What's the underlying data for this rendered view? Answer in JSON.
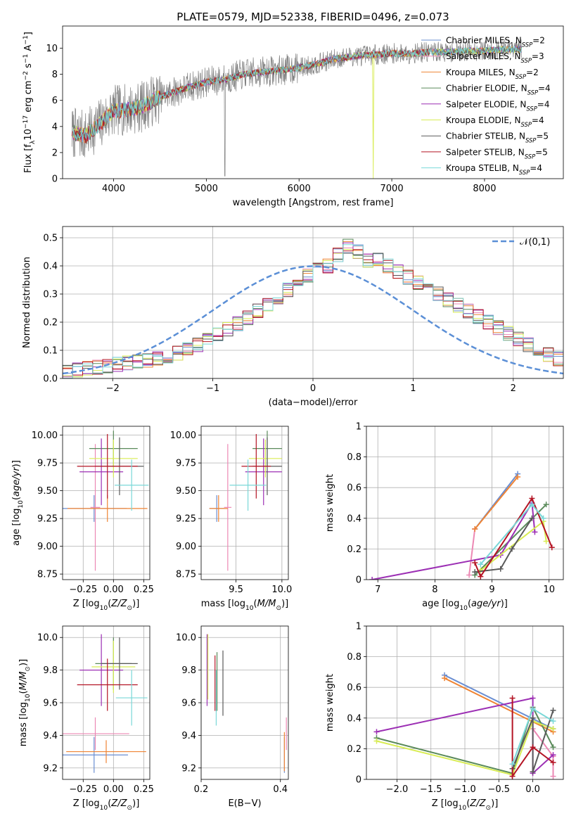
{
  "chart_data": [
    {
      "id": "spectrum",
      "type": "line",
      "title": "PLATE=0579, MJD=52338, FIBERID=0496, z=0.073",
      "xlabel": "wavelength [Angstrom, rest frame]",
      "ylabel": "Flux [f$_\\lambda$10$^{-17}$ erg cm$^{-2}$ s$^{-1}$ A$^{-1}$]",
      "xlim": [
        3450,
        8850
      ],
      "ylim": [
        0,
        11.7
      ],
      "xticks": [
        4000,
        5000,
        6000,
        7000,
        8000
      ],
      "yticks": [
        0,
        2,
        4,
        6,
        8,
        10
      ],
      "data_curve": {
        "x": [
          3550,
          3700,
          3850,
          4000,
          4150,
          4300,
          4450,
          4600,
          4800,
          5000,
          5200,
          5400,
          5600,
          5800,
          6000,
          6200,
          6400,
          6600,
          6800,
          7000,
          7200,
          7400,
          7600,
          7800,
          8000,
          8200,
          8400
        ],
        "y": [
          3.5,
          3.3,
          4.2,
          5.2,
          5.3,
          5.5,
          6.1,
          6.5,
          7.0,
          7.4,
          7.6,
          8.0,
          8.2,
          8.3,
          8.5,
          8.8,
          9.2,
          9.4,
          9.5,
          9.6,
          9.6,
          9.7,
          9.7,
          9.8,
          9.8,
          9.9,
          9.9
        ]
      },
      "legend_loc": "upper right",
      "series": [
        {
          "name": "Chabrier MILES, N$_{SSP}$=2",
          "color": "#6a8ed2"
        },
        {
          "name": "Salpeter MILES, N$_{SSP}$=3",
          "color": "#ec88b4"
        },
        {
          "name": "Kroupa MILES, N$_{SSP}$=2",
          "color": "#ef8434"
        },
        {
          "name": "Chabrier ELODIE, N$_{SSP}$=4",
          "color": "#5a8a5a"
        },
        {
          "name": "Salpeter ELODIE, N$_{SSP}$=4",
          "color": "#9c2fb4"
        },
        {
          "name": "Kroupa ELODIE, N$_{SSP}$=4",
          "color": "#d8ec54"
        },
        {
          "name": "Chabrier STELIB, N$_{SSP}$=5",
          "color": "#5a5a5a"
        },
        {
          "name": "Salpeter STELIB, N$_{SSP}$=5",
          "color": "#b41424"
        },
        {
          "name": "Kroupa STELIB, N$_{SSP}$=4",
          "color": "#7ad8d8"
        }
      ]
    },
    {
      "id": "residuals",
      "type": "line",
      "xlabel": "(data-model)/error",
      "ylabel": "Normed distribution",
      "xlim": [
        -2.5,
        2.5
      ],
      "ylim": [
        0,
        0.54
      ],
      "xticks": [
        -2,
        -1,
        0,
        1,
        2
      ],
      "yticks": [
        0.0,
        0.1,
        0.2,
        0.3,
        0.4,
        0.5
      ],
      "legend_loc": "upper right",
      "reference": {
        "name": "$\\mathcal{N}(0,1)$",
        "mu": 0,
        "sigma": 1
      },
      "histogram": {
        "bin_width": 0.1,
        "x_start": -2.5,
        "values": [
          0.025,
          0.03,
          0.035,
          0.04,
          0.045,
          0.05,
          0.055,
          0.06,
          0.065,
          0.07,
          0.08,
          0.09,
          0.105,
          0.12,
          0.135,
          0.155,
          0.175,
          0.195,
          0.215,
          0.24,
          0.265,
          0.29,
          0.315,
          0.34,
          0.365,
          0.385,
          0.4,
          0.44,
          0.47,
          0.45,
          0.42,
          0.42,
          0.4,
          0.38,
          0.36,
          0.34,
          0.32,
          0.3,
          0.28,
          0.26,
          0.24,
          0.22,
          0.2,
          0.18,
          0.16,
          0.14,
          0.12,
          0.1,
          0.085,
          0.07,
          0.055
        ]
      }
    },
    {
      "id": "age-Z",
      "type": "scatter",
      "xlabel": "Z [log$_{10}$($Z/Z_\\odot$)]",
      "ylabel": "age  [log$_{10}$($age/yr$)]",
      "xlim": [
        -0.42,
        0.3
      ],
      "ylim": [
        8.7,
        10.08
      ],
      "xticks": [
        -0.25,
        0.0,
        0.25
      ],
      "xticklabels": [
        "−0.25",
        "0.00",
        "0.25"
      ],
      "yticks": [
        8.75,
        9.0,
        9.25,
        9.5,
        9.75,
        10.0
      ],
      "yticklabels": [
        "8.75",
        "9.00",
        "9.25",
        "9.50",
        "9.75",
        "10.00"
      ],
      "points": [
        {
          "s": 0,
          "x": -0.16,
          "y": 9.34,
          "xerr": 0.27,
          "yerr": 0.12
        },
        {
          "s": 1,
          "x": -0.15,
          "y": 9.35,
          "xerr": 0.04,
          "yerr": 0.57
        },
        {
          "s": 2,
          "x": -0.05,
          "y": 9.34,
          "xerr": 0.33,
          "yerr": 0.12
        },
        {
          "s": 3,
          "x": 0.0,
          "y": 9.88,
          "xerr": 0.2,
          "yerr": 0.16
        },
        {
          "s": 4,
          "x": -0.1,
          "y": 9.67,
          "xerr": 0.18,
          "yerr": 0.3
        },
        {
          "s": 5,
          "x": 0.0,
          "y": 9.79,
          "xerr": 0.2,
          "yerr": 0.17
        },
        {
          "s": 6,
          "x": 0.05,
          "y": 9.72,
          "xerr": 0.2,
          "yerr": 0.26
        },
        {
          "s": 7,
          "x": -0.05,
          "y": 9.72,
          "xerr": 0.25,
          "yerr": 0.29
        },
        {
          "s": 8,
          "x": 0.15,
          "y": 9.55,
          "xerr": 0.14,
          "yerr": 0.23
        }
      ]
    },
    {
      "id": "age-mass",
      "type": "scatter",
      "xlabel": "mass [log$_{10}$($M/M_\\odot$)]",
      "xlim": [
        9.12,
        10.07
      ],
      "ylim": [
        8.7,
        10.08
      ],
      "xticks": [
        9.5,
        10.0
      ],
      "xticklabels": [
        "9.5",
        "10.0"
      ],
      "yticks": [
        8.75,
        9.0,
        9.25,
        9.5,
        9.75,
        10.0
      ],
      "yticklabels": [
        "8.75",
        "9.00",
        "9.25",
        "9.50",
        "9.75",
        "10.00"
      ],
      "points": [
        {
          "s": 0,
          "x": 9.29,
          "y": 9.34,
          "xerr": 0.08,
          "yerr": 0.12
        },
        {
          "s": 1,
          "x": 9.41,
          "y": 9.35,
          "xerr": 0.04,
          "yerr": 0.57
        },
        {
          "s": 2,
          "x": 9.31,
          "y": 9.34,
          "xerr": 0.1,
          "yerr": 0.12
        },
        {
          "s": 3,
          "x": 9.84,
          "y": 9.88,
          "xerr": 0.16,
          "yerr": 0.16
        },
        {
          "s": 4,
          "x": 9.8,
          "y": 9.67,
          "xerr": 0.2,
          "yerr": 0.3
        },
        {
          "s": 5,
          "x": 9.82,
          "y": 9.79,
          "xerr": 0.18,
          "yerr": 0.17
        },
        {
          "s": 6,
          "x": 9.84,
          "y": 9.72,
          "xerr": 0.16,
          "yerr": 0.26
        },
        {
          "s": 7,
          "x": 9.72,
          "y": 9.72,
          "xerr": 0.16,
          "yerr": 0.29
        },
        {
          "s": 8,
          "x": 9.63,
          "y": 9.55,
          "xerr": 0.2,
          "yerr": 0.23
        }
      ]
    },
    {
      "id": "weight-age",
      "type": "line",
      "xlabel": "age  [log$_{10}$($age/yr$)]",
      "ylabel": "mass weight",
      "xlim": [
        6.8,
        10.25
      ],
      "ylim": [
        0,
        1
      ],
      "xticks": [
        7,
        8,
        9,
        10
      ],
      "yticks": [
        0.0,
        0.2,
        0.4,
        0.6,
        0.8,
        1.0
      ],
      "lines": [
        {
          "s": 0,
          "x": [
            8.7,
            9.45
          ],
          "y": [
            0.33,
            0.69
          ]
        },
        {
          "s": 1,
          "x": [
            8.6,
            8.7
          ],
          "y": [
            0.03,
            0.33
          ]
        },
        {
          "s": 2,
          "x": [
            8.7,
            9.45
          ],
          "y": [
            0.33,
            0.67
          ]
        },
        {
          "s": 3,
          "x": [
            8.7,
            9.95
          ],
          "y": [
            0.03,
            0.49
          ]
        },
        {
          "s": 4,
          "x": [
            6.9,
            9.15,
            9.7,
            9.75
          ],
          "y": [
            0.0,
            0.16,
            0.5,
            0.31
          ]
        },
        {
          "s": 5,
          "x": [
            8.8,
            9.9,
            9.95
          ],
          "y": [
            0.06,
            0.38,
            0.25
          ]
        },
        {
          "s": 6,
          "x": [
            8.7,
            9.15,
            9.35,
            9.7
          ],
          "y": [
            0.05,
            0.07,
            0.2,
            0.4
          ]
        },
        {
          "s": 7,
          "x": [
            8.7,
            8.8,
            9.7,
            10.05
          ],
          "y": [
            0.11,
            0.02,
            0.53,
            0.21
          ]
        },
        {
          "s": 8,
          "x": [
            8.8,
            9.7,
            9.9
          ],
          "y": [
            0.1,
            0.49,
            0.4
          ]
        }
      ]
    },
    {
      "id": "mass-Z",
      "type": "scatter",
      "xlabel": "Z [log$_{10}$($Z/Z_\\odot$)]",
      "ylabel": "mass [log$_{10}$($M/M_\\odot$)]",
      "xlim": [
        -0.42,
        0.3
      ],
      "ylim": [
        9.13,
        10.07
      ],
      "xticks": [
        -0.25,
        0.0,
        0.25
      ],
      "xticklabels": [
        "−0.25",
        "0.00",
        "0.25"
      ],
      "yticks": [
        9.2,
        9.4,
        9.6,
        9.8,
        10.0
      ],
      "yticklabels": [
        "9.2",
        "9.4",
        "9.6",
        "9.8",
        "10.0"
      ],
      "points": [
        {
          "s": 0,
          "x": -0.16,
          "y": 9.28,
          "xerr": 0.28,
          "yerr": 0.11
        },
        {
          "s": 1,
          "x": -0.15,
          "y": 9.41,
          "xerr": 0.28,
          "yerr": 0.1
        },
        {
          "s": 2,
          "x": -0.06,
          "y": 9.3,
          "xerr": 0.33,
          "yerr": 0.07
        },
        {
          "s": 3,
          "x": 0.0,
          "y": 9.84,
          "xerr": 0.15,
          "yerr": 0.16
        },
        {
          "s": 4,
          "x": -0.1,
          "y": 9.8,
          "xerr": 0.18,
          "yerr": 0.22
        },
        {
          "s": 5,
          "x": 0.0,
          "y": 9.82,
          "xerr": 0.18,
          "yerr": 0.16
        },
        {
          "s": 6,
          "x": 0.05,
          "y": 9.84,
          "xerr": 0.15,
          "yerr": 0.16
        },
        {
          "s": 7,
          "x": -0.05,
          "y": 9.71,
          "xerr": 0.25,
          "yerr": 0.16
        },
        {
          "s": 8,
          "x": 0.15,
          "y": 9.63,
          "xerr": 0.13,
          "yerr": 0.17
        }
      ]
    },
    {
      "id": "mass-ebv",
      "type": "scatter",
      "xlabel": "E(B-V)",
      "xlim": [
        0.2,
        0.42
      ],
      "ylim": [
        9.13,
        10.07
      ],
      "xticks": [
        0.2,
        0.4
      ],
      "xticklabels": [
        "0.2",
        "0.4"
      ],
      "yticks": [
        9.2,
        9.4,
        9.6,
        9.8,
        10.0
      ],
      "yticklabels": [
        "9.2",
        "9.4",
        "9.6",
        "9.8",
        "10.0"
      ],
      "points": [
        {
          "s": 0,
          "x": 0.41,
          "y": 9.28,
          "yerr": 0.11
        },
        {
          "s": 1,
          "x": 0.415,
          "y": 9.41,
          "yerr": 0.1
        },
        {
          "s": 2,
          "x": 0.41,
          "y": 9.3,
          "yerr": 0.12
        },
        {
          "s": 3,
          "x": 0.24,
          "y": 9.73,
          "yerr": 0.18
        },
        {
          "s": 4,
          "x": 0.215,
          "y": 9.8,
          "yerr": 0.22
        },
        {
          "s": 5,
          "x": 0.217,
          "y": 9.82,
          "yerr": 0.2
        },
        {
          "s": 6,
          "x": 0.255,
          "y": 9.72,
          "yerr": 0.2
        },
        {
          "s": 7,
          "x": 0.235,
          "y": 9.72,
          "yerr": 0.17
        },
        {
          "s": 8,
          "x": 0.238,
          "y": 9.63,
          "yerr": 0.17
        }
      ]
    },
    {
      "id": "weight-Z",
      "type": "line",
      "xlabel": "Z [log$_{10}$($Z/Z_\\odot$)]",
      "ylabel": "mass weight",
      "xlim": [
        -2.45,
        0.45
      ],
      "ylim": [
        0,
        1
      ],
      "xticks": [
        -2.0,
        -1.5,
        -1.0,
        -0.5,
        0.0
      ],
      "xticklabels": [
        "−2.0",
        "−1.5",
        "−1.0",
        "−0.5",
        "0.0"
      ],
      "yticks": [
        0.0,
        0.2,
        0.4,
        0.6,
        0.8,
        1.0
      ],
      "lines": [
        {
          "s": 0,
          "x": [
            -1.3,
            0.3
          ],
          "y": [
            0.68,
            0.33
          ]
        },
        {
          "s": 1,
          "x": [
            0.0,
            0.3,
            0.3
          ],
          "y": [
            0.33,
            0.15,
            0.02
          ]
        },
        {
          "s": 2,
          "x": [
            -1.3,
            0.3
          ],
          "y": [
            0.66,
            0.31
          ]
        },
        {
          "s": 3,
          "x": [
            -2.3,
            -0.3,
            0.0,
            0.3
          ],
          "y": [
            0.27,
            0.04,
            0.47,
            0.21
          ]
        },
        {
          "s": 4,
          "x": [
            -2.3,
            0.0,
            0.0,
            0.3
          ],
          "y": [
            0.31,
            0.53,
            0.04,
            0.16
          ]
        },
        {
          "s": 5,
          "x": [
            -2.3,
            -0.3,
            0.0,
            0.3
          ],
          "y": [
            0.25,
            0.03,
            0.38,
            0.33
          ]
        },
        {
          "s": 6,
          "x": [
            -0.3,
            0.0,
            0.0,
            0.3
          ],
          "y": [
            0.07,
            0.4,
            0.05,
            0.45
          ]
        },
        {
          "s": 7,
          "x": [
            -0.3,
            -0.3,
            0.0,
            0.3
          ],
          "y": [
            0.53,
            0.02,
            0.21,
            0.11
          ]
        },
        {
          "s": 8,
          "x": [
            -0.3,
            0.0,
            0.3
          ],
          "y": [
            0.1,
            0.46,
            0.38
          ]
        }
      ]
    }
  ]
}
